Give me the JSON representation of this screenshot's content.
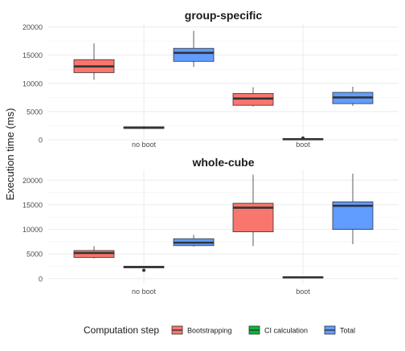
{
  "chart_data": {
    "type": "box",
    "ylabel": "Execution time (ms)",
    "categories": [
      "no boot",
      "boot"
    ],
    "legend": {
      "title": "Computation step",
      "position": "bottom",
      "items": [
        {
          "name": "Bootstrapping",
          "color": "#F8766D"
        },
        {
          "name": "CI calculation",
          "color": "#00BA38"
        },
        {
          "name": "Total",
          "color": "#619CFF"
        }
      ]
    },
    "grid": true,
    "panels": [
      {
        "title": "group-specific",
        "ylim": [
          0,
          20500
        ],
        "yticks": [
          0,
          5000,
          10000,
          15000,
          20000
        ],
        "series": [
          {
            "name": "Bootstrapping",
            "boxes": [
              {
                "category": "no boot",
                "min": 10600,
                "q1": 11900,
                "median": 13000,
                "q3": 14200,
                "max": 17100,
                "outliers": []
              },
              {
                "category": "boot",
                "min": 5900,
                "q1": 6100,
                "median": 7300,
                "q3": 8200,
                "max": 9300,
                "outliers": []
              }
            ]
          },
          {
            "name": "CI calculation",
            "boxes": [
              {
                "category": "no boot",
                "min": 1900,
                "q1": 2000,
                "median": 2150,
                "q3": 2300,
                "max": 2400,
                "outliers": []
              },
              {
                "category": "boot",
                "min": 0,
                "q1": 0,
                "median": 100,
                "q3": 200,
                "max": 250,
                "outliers": [
                  300
                ]
              }
            ]
          },
          {
            "name": "Total",
            "boxes": [
              {
                "category": "no boot",
                "min": 12900,
                "q1": 13900,
                "median": 15400,
                "q3": 16200,
                "max": 19300,
                "outliers": []
              },
              {
                "category": "boot",
                "min": 6000,
                "q1": 6400,
                "median": 7500,
                "q3": 8400,
                "max": 9400,
                "outliers": []
              }
            ]
          }
        ]
      },
      {
        "title": "whole-cube",
        "ylim": [
          -1000,
          22000
        ],
        "yticks": [
          0,
          5000,
          10000,
          15000,
          20000
        ],
        "series": [
          {
            "name": "Bootstrapping",
            "boxes": [
              {
                "category": "no boot",
                "min": 4100,
                "q1": 4300,
                "median": 5200,
                "q3": 5700,
                "max": 6600,
                "outliers": []
              },
              {
                "category": "boot",
                "min": 6600,
                "q1": 9500,
                "median": 14400,
                "q3": 15300,
                "max": 21100,
                "outliers": []
              }
            ]
          },
          {
            "name": "CI calculation",
            "boxes": [
              {
                "category": "no boot",
                "min": 2100,
                "q1": 2200,
                "median": 2350,
                "q3": 2500,
                "max": 2500,
                "outliers": [
                  1700
                ]
              },
              {
                "category": "boot",
                "min": 100,
                "q1": 150,
                "median": 250,
                "q3": 350,
                "max": 400,
                "outliers": []
              }
            ]
          },
          {
            "name": "Total",
            "boxes": [
              {
                "category": "no boot",
                "min": 6500,
                "q1": 6700,
                "median": 7300,
                "q3": 8100,
                "max": 8900,
                "outliers": []
              },
              {
                "category": "boot",
                "min": 7000,
                "q1": 10000,
                "median": 14800,
                "q3": 15600,
                "max": 21300,
                "outliers": []
              }
            ]
          }
        ]
      }
    ]
  }
}
